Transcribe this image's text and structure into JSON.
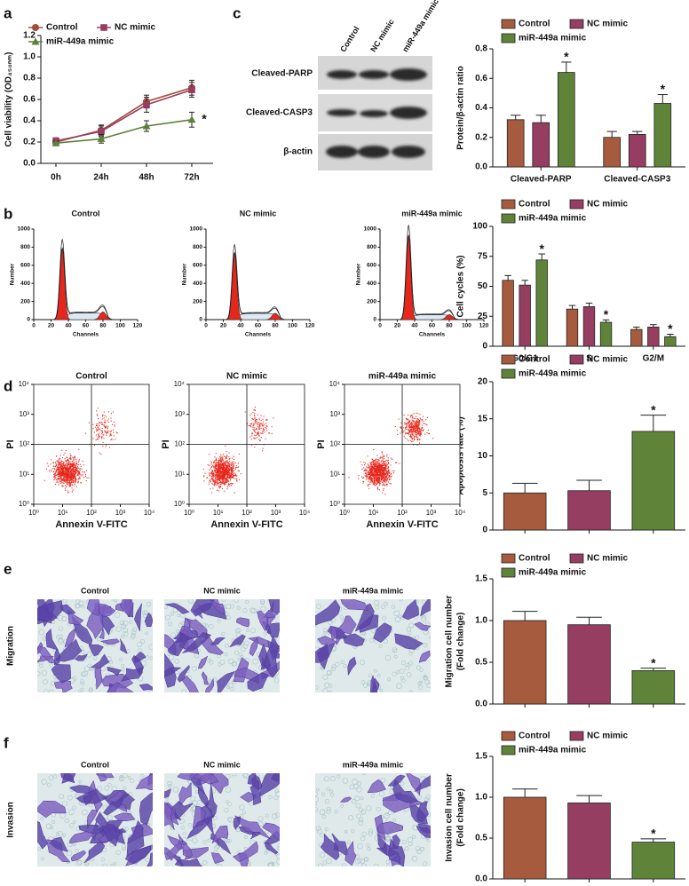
{
  "panel_labels": [
    "a",
    "b",
    "c",
    "d",
    "e",
    "f"
  ],
  "chart_data": [
    {
      "type": "line",
      "ylabel": "Cell viability (OD₄₅₀ₙₘ)",
      "categories": [
        "0h",
        "24h",
        "48h",
        "72h"
      ],
      "ylim": [
        0,
        1.2
      ],
      "yticks": [
        {
          "value": 0,
          "label": "0.0"
        },
        0.2,
        0.4,
        0.6,
        0.8,
        {
          "value": 1,
          "label": "1.0"
        },
        1.2
      ],
      "series": [
        {
          "name": "Control",
          "color": "#a0503a",
          "marker": "circle",
          "values": [
            0.2,
            0.31,
            0.58,
            0.71
          ],
          "errors": [
            0.03,
            0.05,
            0.06,
            0.07
          ]
        },
        {
          "name": "NC mimic",
          "color": "#9a3b62",
          "marker": "square",
          "values": [
            0.21,
            0.3,
            0.55,
            0.69
          ],
          "errors": [
            0.03,
            0.05,
            0.07,
            0.07
          ]
        },
        {
          "name": "miR-449a mimic",
          "color": "#5e803a",
          "marker": "triangle",
          "values": [
            0.19,
            0.23,
            0.35,
            0.41
          ],
          "errors": [
            0.02,
            0.04,
            0.05,
            0.07
          ],
          "significance": [
            null,
            null,
            null,
            "*"
          ]
        }
      ]
    },
    {
      "type": "bar",
      "ylabel": "Protein/β-actin ratio",
      "categories": [
        "Cleaved-PARP",
        "Cleaved-CASP3"
      ],
      "ylim": [
        0,
        0.8
      ],
      "yticks": [
        {
          "value": 0,
          "label": "0.0"
        },
        0.2,
        0.4,
        0.6,
        0.8
      ],
      "series": [
        {
          "name": "Control",
          "color": "#a65a3e",
          "values": [
            0.32,
            0.2
          ],
          "errors": [
            0.03,
            0.04
          ]
        },
        {
          "name": "NC mimic",
          "color": "#963d62",
          "values": [
            0.3,
            0.22
          ],
          "errors": [
            0.05,
            0.02
          ]
        },
        {
          "name": "miR-449a mimic",
          "color": "#5f8439",
          "values": [
            0.64,
            0.43
          ],
          "errors": [
            0.07,
            0.06
          ],
          "significance": [
            "*",
            "*"
          ]
        }
      ]
    },
    {
      "type": "bar",
      "ylabel": "Cell cycles (%)",
      "categories": [
        "G0/G1",
        "S",
        "G2/M"
      ],
      "ylim": [
        0,
        100
      ],
      "yticks": [
        0,
        25,
        50,
        75,
        100
      ],
      "series": [
        {
          "name": "Control",
          "color": "#a65a3e",
          "values": [
            55,
            31,
            14
          ],
          "errors": [
            4,
            3,
            2
          ]
        },
        {
          "name": "NC mimic",
          "color": "#963d62",
          "values": [
            51,
            33,
            16
          ],
          "errors": [
            4,
            3,
            2
          ]
        },
        {
          "name": "miR-449a mimic",
          "color": "#5f8439",
          "values": [
            72,
            20,
            8
          ],
          "errors": [
            5,
            2,
            2
          ],
          "significance": [
            "*",
            "*",
            "*"
          ]
        }
      ]
    },
    {
      "type": "bar",
      "ylabel": "Apoptosis rate (%)",
      "categories": [
        null
      ],
      "ylim": [
        0,
        20
      ],
      "yticks": [
        0,
        5,
        10,
        15,
        20
      ],
      "series": [
        {
          "name": "Control",
          "color": "#a65a3e",
          "values": [
            5.0
          ],
          "errors": [
            1.3
          ]
        },
        {
          "name": "NC mimic",
          "color": "#963d62",
          "values": [
            5.3
          ],
          "errors": [
            1.4
          ]
        },
        {
          "name": "miR-449a mimic",
          "color": "#5f8439",
          "values": [
            13.3
          ],
          "errors": [
            2.2
          ],
          "significance": [
            "*"
          ]
        }
      ]
    },
    {
      "type": "bar",
      "ylabel": [
        "Migration cell number",
        "(Fold change)"
      ],
      "categories": [
        null
      ],
      "ylim": [
        0,
        1.5
      ],
      "yticks": [
        {
          "value": 0,
          "label": "0.0"
        },
        0.5,
        {
          "value": 1,
          "label": "1.0"
        },
        1.5
      ],
      "series": [
        {
          "name": "Control",
          "color": "#a65a3e",
          "values": [
            1.0
          ],
          "errors": [
            0.11
          ]
        },
        {
          "name": "NC mimic",
          "color": "#963d62",
          "values": [
            0.95
          ],
          "errors": [
            0.09
          ]
        },
        {
          "name": "miR-449a mimic",
          "color": "#5f8439",
          "values": [
            0.4
          ],
          "errors": [
            0.03
          ],
          "significance": [
            "*"
          ]
        }
      ]
    },
    {
      "type": "bar",
      "ylabel": [
        "Invasion cell number",
        "(Fold change)"
      ],
      "categories": [
        null
      ],
      "ylim": [
        0,
        1.5
      ],
      "yticks": [
        {
          "value": 0,
          "label": "0.0"
        },
        0.5,
        {
          "value": 1,
          "label": "1.0"
        },
        1.5
      ],
      "series": [
        {
          "name": "Control",
          "color": "#a65a3e",
          "values": [
            1.0
          ],
          "errors": [
            0.1
          ]
        },
        {
          "name": "NC mimic",
          "color": "#963d62",
          "values": [
            0.93
          ],
          "errors": [
            0.09
          ]
        },
        {
          "name": "miR-449a mimic",
          "color": "#5f8439",
          "values": [
            0.45
          ],
          "errors": [
            0.04
          ],
          "significance": [
            "*"
          ]
        }
      ]
    }
  ],
  "western_blot": {
    "lanes": [
      "Control",
      "NC mimic",
      "miR-449a mimic"
    ],
    "proteins": [
      "Cleaved-PARP",
      "Cleaved-CASP3",
      "β-actin"
    ]
  },
  "cell_cycle_histograms": {
    "titles": [
      "Control",
      "NC mimic",
      "miR-449a mimic"
    ],
    "xlabel": "Channels",
    "ylabel": "Number",
    "xlim": [
      0,
      120
    ],
    "ylim": [
      0,
      1000
    ],
    "xticks": [
      0,
      20,
      40,
      60,
      80,
      100,
      120
    ],
    "yticks": [
      0,
      200,
      400,
      600,
      800,
      1000
    ]
  },
  "flow_cytometry": {
    "titles": [
      "Control",
      "NC mimic",
      "miR-449a mimic"
    ],
    "xlabel": "Annexin V-FITC",
    "ylabel": "PI",
    "log": true,
    "xlim": [
      1,
      10000
    ],
    "ylim": [
      1,
      10000
    ],
    "xticks": [
      {
        "value": 1,
        "label": "10⁰"
      },
      {
        "value": 10,
        "label": "10¹"
      },
      {
        "value": 100,
        "label": "10²"
      },
      {
        "value": 1000,
        "label": "10³"
      },
      {
        "value": 10000,
        "label": "10⁴"
      }
    ],
    "yticks": [
      {
        "value": 1,
        "label": "10⁰"
      },
      {
        "value": 10,
        "label": "10¹"
      },
      {
        "value": 100,
        "label": "10²"
      },
      {
        "value": 1000,
        "label": "10³"
      },
      {
        "value": 10000,
        "label": "10⁴"
      }
    ]
  },
  "transwell": {
    "rows": [
      {
        "label": "Migration",
        "titles": [
          "Control",
          "NC mimic",
          "miR-449a mimic"
        ]
      },
      {
        "label": "Invasion",
        "titles": [
          "Control",
          "NC mimic",
          "miR-449a mimic"
        ]
      }
    ]
  }
}
